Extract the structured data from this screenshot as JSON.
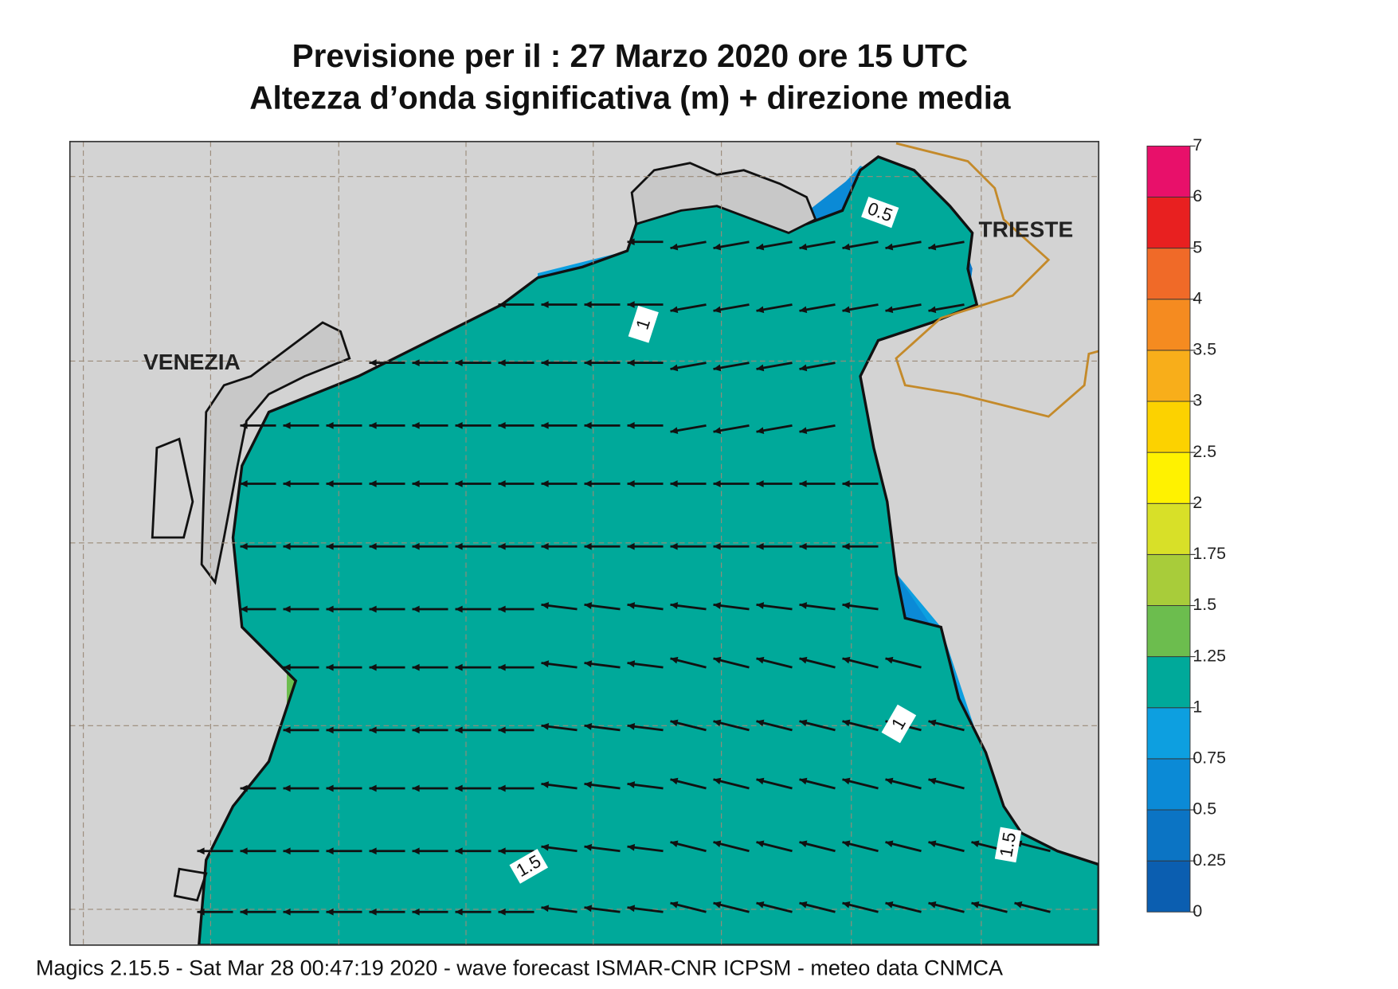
{
  "header": {
    "title_line_1": "Previsione per il  :  27   Marzo   2020   ore 15 UTC",
    "title_line_2": "Altezza d’onda significativa (m) + direzione media"
  },
  "map": {
    "places": [
      "VENEZIA",
      "TRIESTE"
    ],
    "contour_labels": [
      "0.5",
      "1",
      "1",
      "1.5",
      "1.5"
    ]
  },
  "legend": {
    "ticks": [
      0,
      0.25,
      0.5,
      0.75,
      1,
      1.25,
      1.5,
      1.75,
      2,
      2.5,
      3,
      3.5,
      4,
      5,
      6,
      7
    ],
    "colors": [
      "#0b5eb0",
      "#0b74c4",
      "#0b8ad6",
      "#0d9fe0",
      "#00a99a",
      "#6cbd4e",
      "#a8cc3a",
      "#d8e028",
      "#fff200",
      "#fcd200",
      "#f8ae1a",
      "#f58b20",
      "#f06a28",
      "#e82020",
      "#e8106a"
    ]
  },
  "footer": "Magics 2.15.5 - Sat Mar 28 00:47:19 2020 - wave forecast  ISMAR-CNR  ICPSM - meteo data   CNMCA"
}
